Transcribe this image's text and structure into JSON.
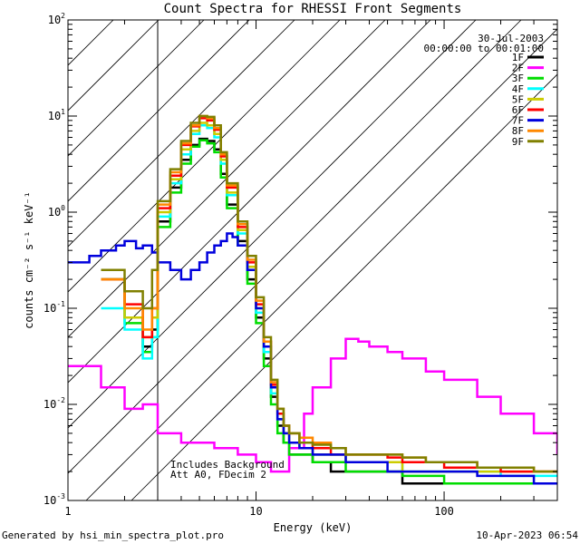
{
  "chart_data": {
    "type": "line",
    "title": "Count Spectra for RHESSI Front Segments",
    "xlabel": "Energy (keV)",
    "ylabel": "counts cm⁻² s⁻¹ keV⁻¹",
    "xscale": "log",
    "yscale": "log",
    "xlim": [
      1,
      400
    ],
    "ylim": [
      0.001,
      100
    ],
    "x_ticks": [
      {
        "value": 1,
        "label": "1"
      },
      {
        "value": 10,
        "label": "10"
      },
      {
        "value": 100,
        "label": "100"
      }
    ],
    "y_ticks": [
      {
        "value": 100,
        "base": "10",
        "exp": "2"
      },
      {
        "value": 10,
        "base": "10",
        "exp": "1"
      },
      {
        "value": 1,
        "base": "10",
        "exp": "0"
      },
      {
        "value": 0.1,
        "base": "10",
        "exp": "-1"
      },
      {
        "value": 0.01,
        "base": "10",
        "exp": "-2"
      },
      {
        "value": 0.001,
        "base": "10",
        "exp": "-3"
      }
    ],
    "hatched_region": [
      1,
      3
    ],
    "date": "30-Jul-2003",
    "time_range": "00:00:00 to 00:01:00",
    "annotations": [
      "Includes Background",
      "Att A0, FDecim 2"
    ],
    "legend_position": "top-right",
    "series": [
      {
        "name": "1F",
        "color": "#000000",
        "x": [
          1.5,
          2,
          2.5,
          2.8,
          3,
          3.5,
          4,
          4.5,
          5,
          5.5,
          6,
          6.5,
          7,
          8,
          9,
          10,
          11,
          12,
          13,
          14,
          15,
          17,
          20,
          25,
          30,
          40,
          50,
          60,
          80,
          100,
          150,
          200,
          300,
          400
        ],
        "y": [
          0.2,
          0.08,
          0.04,
          0.06,
          0.8,
          1.8,
          3.5,
          5.0,
          5.8,
          5.5,
          4.5,
          2.5,
          1.2,
          0.5,
          0.2,
          0.08,
          0.03,
          0.012,
          0.006,
          0.004,
          0.003,
          0.003,
          0.0025,
          0.002,
          0.002,
          0.002,
          0.002,
          0.0015,
          0.0015,
          0.0015,
          0.0015,
          0.0015,
          0.0015,
          0.0015
        ]
      },
      {
        "name": "2F",
        "color": "#ff00ff",
        "x": [
          1,
          1.5,
          2,
          2.5,
          3,
          4,
          6,
          8,
          10,
          12,
          15,
          18,
          20,
          25,
          30,
          35,
          40,
          50,
          60,
          80,
          100,
          150,
          200,
          300,
          400
        ],
        "y": [
          0.025,
          0.015,
          0.009,
          0.01,
          0.005,
          0.004,
          0.0035,
          0.003,
          0.0025,
          0.002,
          0.0035,
          0.008,
          0.015,
          0.03,
          0.048,
          0.045,
          0.04,
          0.035,
          0.03,
          0.022,
          0.018,
          0.012,
          0.008,
          0.005,
          0.003
        ]
      },
      {
        "name": "3F",
        "color": "#00dd00",
        "x": [
          1.5,
          2,
          2.5,
          2.8,
          3,
          3.5,
          4,
          4.5,
          5,
          5.5,
          6,
          6.5,
          7,
          8,
          9,
          10,
          11,
          12,
          13,
          14,
          15,
          17,
          20,
          25,
          30,
          40,
          50,
          60,
          80,
          100,
          150,
          200,
          300,
          400
        ],
        "y": [
          0.2,
          0.07,
          0.035,
          0.05,
          0.7,
          1.6,
          3.2,
          4.8,
          5.6,
          5.2,
          4.2,
          2.3,
          1.1,
          0.45,
          0.18,
          0.07,
          0.025,
          0.01,
          0.005,
          0.004,
          0.003,
          0.003,
          0.0025,
          0.0025,
          0.002,
          0.002,
          0.002,
          0.0018,
          0.0018,
          0.0015,
          0.0015,
          0.0015,
          0.0015,
          0.0015
        ]
      },
      {
        "name": "4F",
        "color": "#00ffff",
        "x": [
          1.5,
          2,
          2.5,
          2.8,
          3,
          3.5,
          4,
          4.5,
          5,
          5.5,
          6,
          6.5,
          7,
          8,
          9,
          10,
          11,
          12,
          13,
          14,
          15,
          17,
          20,
          25,
          30,
          40,
          50,
          60,
          80,
          100,
          150,
          200,
          300,
          400
        ],
        "y": [
          0.1,
          0.06,
          0.03,
          0.05,
          0.9,
          2.0,
          4.0,
          6.5,
          8.0,
          7.5,
          6.0,
          3.2,
          1.5,
          0.6,
          0.25,
          0.09,
          0.035,
          0.013,
          0.007,
          0.005,
          0.004,
          0.0035,
          0.003,
          0.003,
          0.0025,
          0.0025,
          0.0025,
          0.002,
          0.002,
          0.002,
          0.002,
          0.0018,
          0.0018,
          0.0018
        ]
      },
      {
        "name": "5F",
        "color": "#cccc00",
        "x": [
          1.5,
          2,
          2.5,
          2.8,
          3,
          3.5,
          4,
          4.5,
          5,
          5.5,
          6,
          6.5,
          7,
          8,
          9,
          10,
          11,
          12,
          13,
          14,
          15,
          17,
          20,
          25,
          30,
          40,
          50,
          60,
          80,
          100,
          150,
          200,
          300,
          400
        ],
        "y": [
          0.2,
          0.08,
          0.05,
          0.08,
          1.0,
          2.2,
          4.5,
          7.0,
          8.5,
          8.0,
          6.5,
          3.5,
          1.6,
          0.65,
          0.27,
          0.1,
          0.04,
          0.015,
          0.008,
          0.005,
          0.004,
          0.0035,
          0.003,
          0.003,
          0.0025,
          0.0025,
          0.0025,
          0.002,
          0.002,
          0.002,
          0.002,
          0.002,
          0.002,
          0.002
        ]
      },
      {
        "name": "6F",
        "color": "#ff0000",
        "x": [
          1.5,
          2,
          2.5,
          2.8,
          3,
          3.5,
          4,
          4.5,
          5,
          5.5,
          6,
          6.5,
          7,
          8,
          9,
          10,
          11,
          12,
          13,
          14,
          15,
          17,
          20,
          25,
          30,
          40,
          50,
          60,
          80,
          100,
          150,
          200,
          300,
          400
        ],
        "y": [
          0.2,
          0.11,
          0.05,
          0.1,
          1.1,
          2.4,
          5.0,
          7.8,
          9.5,
          9.0,
          7.2,
          3.8,
          1.8,
          0.7,
          0.3,
          0.11,
          0.045,
          0.016,
          0.008,
          0.006,
          0.005,
          0.004,
          0.0035,
          0.003,
          0.003,
          0.003,
          0.0028,
          0.0025,
          0.0025,
          0.0022,
          0.0022,
          0.002,
          0.002,
          0.002
        ]
      },
      {
        "name": "7F",
        "color": "#0000dd",
        "x": [
          1,
          1.3,
          1.5,
          1.8,
          2,
          2.3,
          2.5,
          2.8,
          3,
          3.5,
          4,
          4.5,
          5,
          5.5,
          6,
          6.5,
          7,
          7.5,
          8,
          9,
          10,
          11,
          12,
          13,
          14,
          15,
          17,
          20,
          25,
          30,
          40,
          50,
          60,
          80,
          100,
          150,
          200,
          300,
          400
        ],
        "y": [
          0.3,
          0.35,
          0.4,
          0.45,
          0.5,
          0.42,
          0.45,
          0.38,
          0.3,
          0.25,
          0.2,
          0.25,
          0.3,
          0.38,
          0.45,
          0.5,
          0.6,
          0.55,
          0.45,
          0.25,
          0.1,
          0.04,
          0.015,
          0.007,
          0.005,
          0.004,
          0.0035,
          0.003,
          0.003,
          0.0025,
          0.0025,
          0.002,
          0.002,
          0.002,
          0.002,
          0.0018,
          0.0018,
          0.0015,
          0.0015
        ]
      },
      {
        "name": "8F",
        "color": "#ff8800",
        "x": [
          1.5,
          2,
          2.5,
          2.8,
          3,
          3.5,
          4,
          4.5,
          5,
          5.5,
          6,
          6.5,
          7,
          8,
          9,
          10,
          11,
          12,
          13,
          14,
          15,
          17,
          20,
          25,
          30,
          40,
          50,
          60,
          80,
          100,
          150,
          200,
          300,
          400
        ],
        "y": [
          0.2,
          0.1,
          0.06,
          0.1,
          1.2,
          2.6,
          5.2,
          8.0,
          10.0,
          9.5,
          7.5,
          4.0,
          1.9,
          0.75,
          0.32,
          0.12,
          0.045,
          0.017,
          0.009,
          0.006,
          0.005,
          0.0045,
          0.004,
          0.0035,
          0.003,
          0.003,
          0.003,
          0.0028,
          0.0025,
          0.0025,
          0.0022,
          0.0022,
          0.002,
          0.002
        ]
      },
      {
        "name": "9F",
        "color": "#808000",
        "x": [
          1.5,
          2,
          2.5,
          2.8,
          3,
          3.5,
          4,
          4.5,
          5,
          5.5,
          6,
          6.5,
          7,
          8,
          9,
          10,
          11,
          12,
          13,
          14,
          15,
          17,
          20,
          25,
          30,
          40,
          50,
          60,
          80,
          100,
          150,
          200,
          300,
          400
        ],
        "y": [
          0.25,
          0.15,
          0.1,
          0.25,
          1.3,
          2.8,
          5.5,
          8.5,
          10.0,
          9.8,
          8.0,
          4.2,
          2.0,
          0.8,
          0.35,
          0.13,
          0.05,
          0.018,
          0.009,
          0.006,
          0.005,
          0.004,
          0.0038,
          0.0035,
          0.003,
          0.003,
          0.003,
          0.0028,
          0.0025,
          0.0025,
          0.0022,
          0.0022,
          0.002,
          0.002
        ]
      }
    ]
  },
  "footer": {
    "generated_by": "Generated by hsi_min_spectra_plot.pro",
    "timestamp": "10-Apr-2023 06:54"
  }
}
